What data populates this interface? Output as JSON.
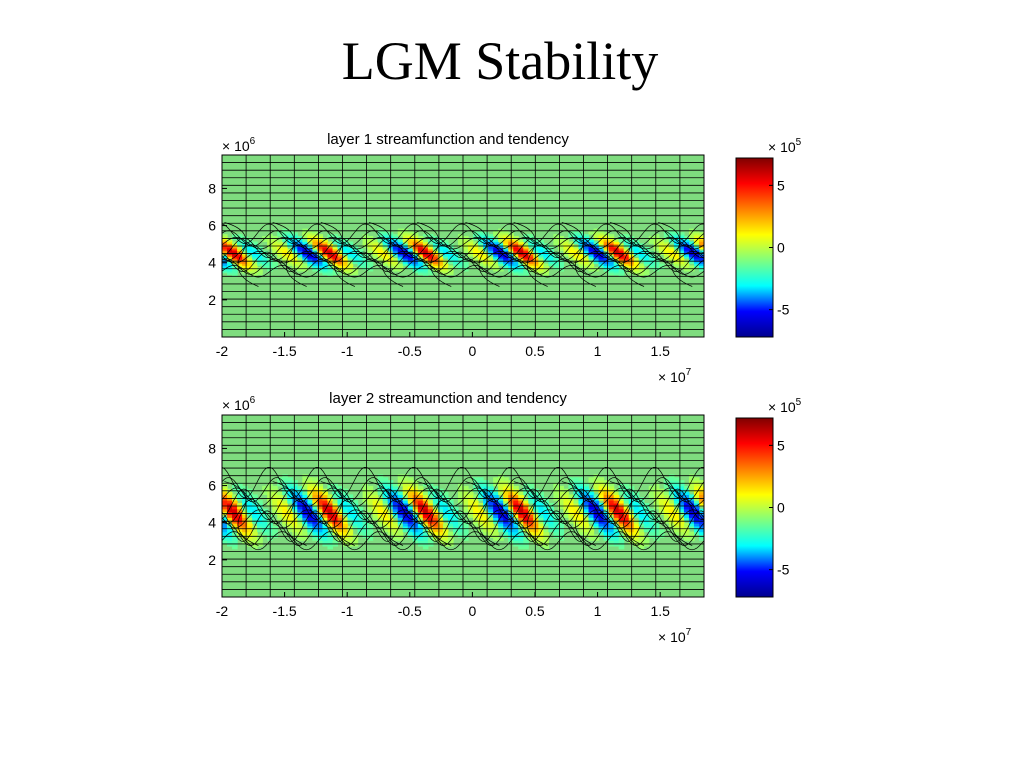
{
  "slide": {
    "title": "LGM Stability"
  },
  "colors": {
    "background": "#7fdc7f",
    "contour": "#000000",
    "colormap": [
      "#00008f",
      "#0000ff",
      "#00ffff",
      "#7fff7f",
      "#ffff00",
      "#ff7f00",
      "#ff0000",
      "#7f0000"
    ]
  },
  "chart_data": [
    {
      "type": "heatmap",
      "title": "layer 1 streamfunction and tendency",
      "xlabel": "",
      "ylabel": "",
      "x_ticks": [
        -2,
        -1.5,
        -1,
        -0.5,
        0,
        0.5,
        1,
        1.5
      ],
      "x_tick_labels": [
        "-2",
        "-1.5",
        "-1",
        "-0.5",
        "0",
        "0.5",
        "1",
        "1.5"
      ],
      "x_multiplier": {
        "base": "× 10",
        "exp": "7"
      },
      "xlim": [
        -2,
        1.85
      ],
      "y_ticks": [
        2,
        4,
        6,
        8
      ],
      "y_tick_labels": [
        "2",
        "4",
        "6",
        "8"
      ],
      "y_multiplier": {
        "base": "× 10",
        "exp": "6"
      },
      "ylim": [
        0,
        9.8
      ],
      "colorbar": {
        "ticks": [
          -5,
          0,
          5
        ],
        "tick_labels": [
          "-5",
          "0",
          "5"
        ],
        "multiplier": {
          "base": "× 10",
          "exp": "5"
        },
        "range": [
          -7.2,
          7.2
        ]
      },
      "anomaly_center_y": 4.55,
      "anomaly_width": 0.9,
      "wave_count": 10,
      "amplitude": 7,
      "grid": true
    },
    {
      "type": "heatmap",
      "title": "layer 2 streamunction and tendency",
      "xlabel": "",
      "ylabel": "",
      "x_ticks": [
        -2,
        -1.5,
        -1,
        -0.5,
        0,
        0.5,
        1,
        1.5
      ],
      "x_tick_labels": [
        "-2",
        "-1.5",
        "-1",
        "-0.5",
        "0",
        "0.5",
        "1",
        "1.5"
      ],
      "x_multiplier": {
        "base": "× 10",
        "exp": "7"
      },
      "xlim": [
        -2,
        1.85
      ],
      "y_ticks": [
        2,
        4,
        6,
        8
      ],
      "y_tick_labels": [
        "2",
        "4",
        "6",
        "8"
      ],
      "y_multiplier": {
        "base": "× 10",
        "exp": "6"
      },
      "ylim": [
        0,
        9.8
      ],
      "colorbar": {
        "ticks": [
          -5,
          0,
          5
        ],
        "tick_labels": [
          "-5",
          "0",
          "5"
        ],
        "multiplier": {
          "base": "× 10",
          "exp": "5"
        },
        "range": [
          -7.2,
          7.2
        ]
      },
      "anomaly_center_y": 4.6,
      "anomaly_width": 1.4,
      "wave_count": 10,
      "amplitude": 6,
      "grid": true
    }
  ]
}
